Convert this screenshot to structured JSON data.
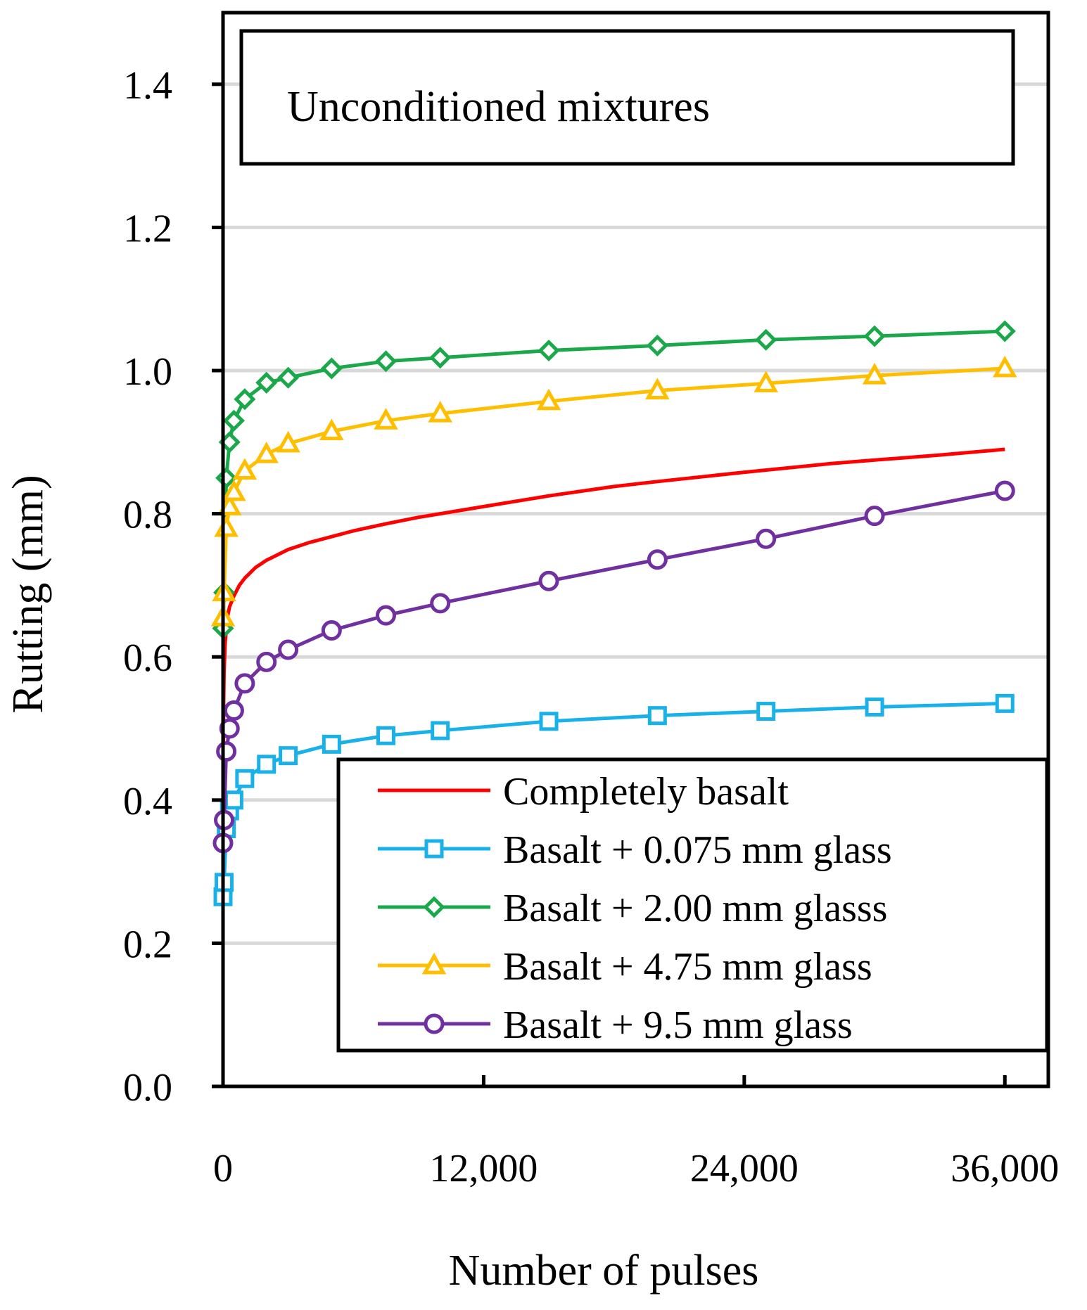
{
  "chart_data": {
    "type": "line",
    "title": "Unconditioned mixtures",
    "xlabel": "Number of pulses",
    "ylabel": "Rutting (mm)",
    "xlim": [
      0,
      38000
    ],
    "ylim": [
      0,
      1.5
    ],
    "xticks": [
      0,
      12000,
      24000,
      36000
    ],
    "xtick_labels": [
      "0",
      "12,000",
      "24,000",
      "36,000"
    ],
    "yticks": [
      0,
      0.2,
      0.4,
      0.6,
      0.8,
      1.0,
      1.2,
      1.4
    ],
    "ytick_labels": [
      "0.0",
      "0.2",
      "0.4",
      "0.6",
      "0.8",
      "1.0",
      "1.2",
      "1.4"
    ],
    "grid": "horizontal",
    "legend_position": "bottom-right",
    "series": [
      {
        "name": "Completely basalt",
        "color": "#ff0000",
        "marker": "none",
        "x": [
          0,
          25,
          50,
          100,
          200,
          300,
          500,
          750,
          1000,
          1500,
          2000,
          3000,
          4000,
          5000,
          6000,
          7500,
          9000,
          10000,
          12000,
          15000,
          18000,
          20000,
          24000,
          28000,
          30000,
          33000,
          36000
        ],
        "y": [
          0.31,
          0.53,
          0.58,
          0.62,
          0.655,
          0.67,
          0.685,
          0.7,
          0.71,
          0.725,
          0.735,
          0.75,
          0.76,
          0.768,
          0.776,
          0.786,
          0.795,
          0.8,
          0.81,
          0.825,
          0.838,
          0.845,
          0.858,
          0.87,
          0.875,
          0.882,
          0.89
        ]
      },
      {
        "name": "Basalt + 0.075 mm glass",
        "color": "#1ab0e8",
        "marker": "square",
        "x": [
          0,
          50,
          150,
          300,
          500,
          1000,
          2000,
          3000,
          5000,
          7500,
          10000,
          15000,
          20000,
          25000,
          30000,
          36000
        ],
        "y": [
          0.265,
          0.285,
          0.36,
          0.385,
          0.4,
          0.43,
          0.45,
          0.462,
          0.478,
          0.49,
          0.497,
          0.51,
          0.518,
          0.524,
          0.53,
          0.535
        ]
      },
      {
        "name": "Basalt + 2.00 mm glasss",
        "color": "#1aa84a",
        "marker": "diamond",
        "x": [
          0,
          50,
          150,
          300,
          500,
          1000,
          2000,
          3000,
          5000,
          7500,
          10000,
          15000,
          20000,
          25000,
          30000,
          36000
        ],
        "y": [
          0.64,
          0.69,
          0.85,
          0.9,
          0.93,
          0.96,
          0.983,
          0.99,
          1.003,
          1.013,
          1.018,
          1.028,
          1.035,
          1.043,
          1.048,
          1.055
        ]
      },
      {
        "name": "Basalt + 4.75 mm glass",
        "color": "#ffbf00",
        "marker": "triangle",
        "x": [
          0,
          50,
          150,
          300,
          500,
          1000,
          2000,
          3000,
          5000,
          7500,
          10000,
          15000,
          20000,
          25000,
          30000,
          36000
        ],
        "y": [
          0.655,
          0.69,
          0.78,
          0.81,
          0.83,
          0.86,
          0.883,
          0.898,
          0.915,
          0.93,
          0.94,
          0.957,
          0.972,
          0.982,
          0.993,
          1.003
        ]
      },
      {
        "name": "Basalt + 9.5 mm glass",
        "color": "#7030a0",
        "marker": "circle",
        "x": [
          0,
          50,
          150,
          300,
          500,
          1000,
          2000,
          3000,
          5000,
          7500,
          10000,
          15000,
          20000,
          25000,
          30000,
          36000
        ],
        "y": [
          0.34,
          0.372,
          0.468,
          0.5,
          0.525,
          0.563,
          0.593,
          0.61,
          0.637,
          0.658,
          0.675,
          0.706,
          0.736,
          0.765,
          0.797,
          0.832
        ]
      }
    ]
  }
}
